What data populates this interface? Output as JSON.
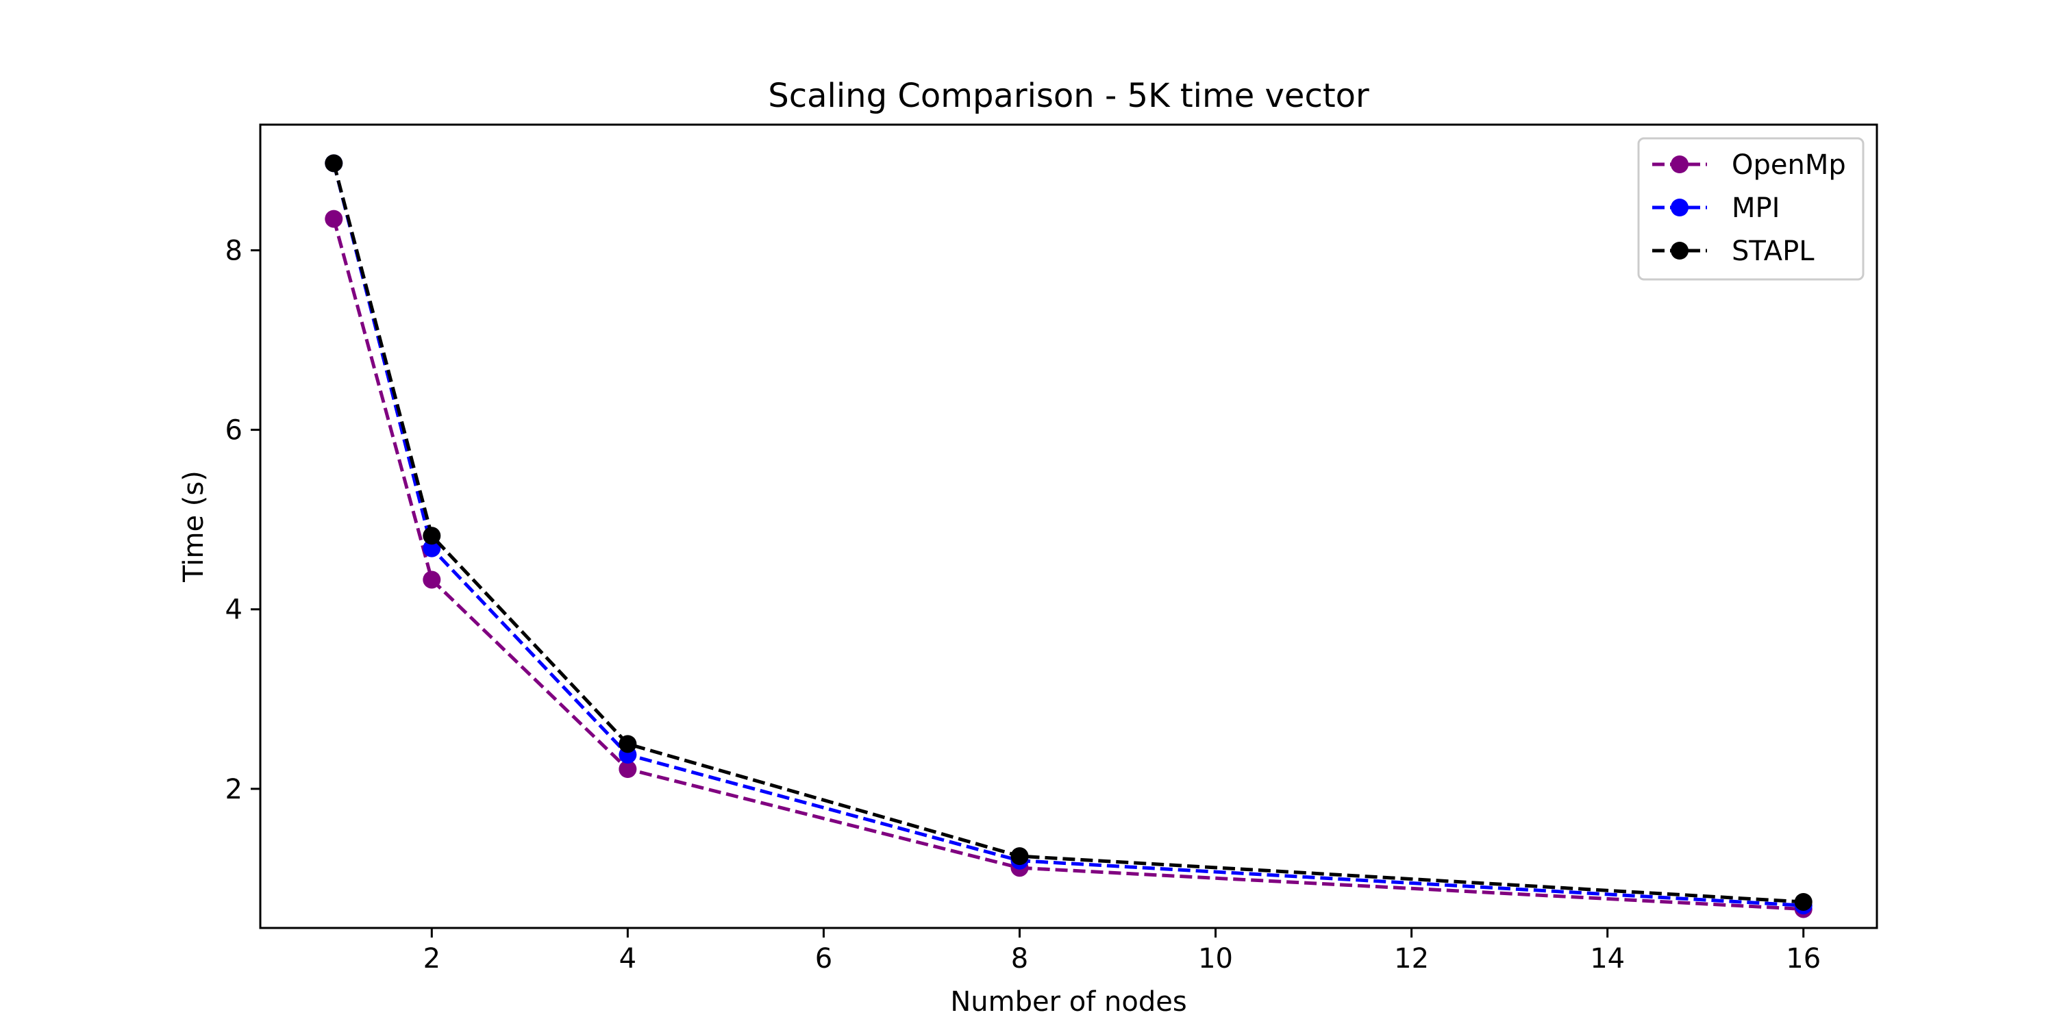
{
  "chart_data": {
    "type": "line",
    "title": "Scaling Comparison - 5K time vector",
    "xlabel": "Number of nodes",
    "ylabel": "Time (s)",
    "xlim": [
      0.25,
      16.75
    ],
    "ylim": [
      0.45,
      9.4
    ],
    "xticks": [
      2,
      4,
      6,
      8,
      10,
      12,
      14,
      16
    ],
    "yticks": [
      2,
      4,
      6,
      8
    ],
    "grid": false,
    "legend_position": "top-right",
    "series": [
      {
        "name": "OpenMp",
        "color": "#800080",
        "marker": "circle",
        "linestyle": "dashed",
        "x": [
          1,
          2,
          4,
          8,
          16
        ],
        "y": [
          8.35,
          4.33,
          2.22,
          1.12,
          0.66
        ]
      },
      {
        "name": "MPI",
        "color": "#0000ff",
        "marker": "circle",
        "linestyle": "dashed",
        "x": [
          1,
          2,
          4,
          8,
          16
        ],
        "y": [
          8.97,
          4.68,
          2.38,
          1.2,
          0.7
        ]
      },
      {
        "name": "STAPL",
        "color": "#000000",
        "marker": "circle",
        "linestyle": "dashed",
        "x": [
          1,
          2,
          4,
          8,
          16
        ],
        "y": [
          8.97,
          4.82,
          2.5,
          1.25,
          0.74
        ]
      }
    ]
  }
}
